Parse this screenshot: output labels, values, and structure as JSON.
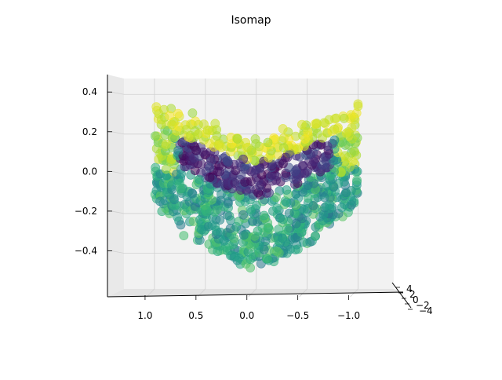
{
  "chart_data": {
    "type": "scatter",
    "projection": "3d",
    "title": "Isomap",
    "colormap": "viridis",
    "marker_alpha": 0.55,
    "axes": {
      "x": {
        "ticks": [
          1.0,
          0.5,
          0.0,
          -0.5,
          -1.0
        ],
        "tick_labels": [
          "1.0",
          "0.5",
          "0.0",
          "−0.5",
          "−1.0"
        ],
        "range": [
          1.3,
          -1.35
        ]
      },
      "z": {
        "ticks": [
          0.4,
          0.2,
          0.0,
          -0.2,
          -0.4
        ],
        "tick_labels": [
          "0.4",
          "0.2",
          "0.0",
          "−0.2",
          "−0.4"
        ],
        "range": [
          -0.58,
          0.48
        ]
      },
      "y": {
        "tick_labels": [
          "4",
          "2",
          "0",
          "−2",
          "−4"
        ]
      },
      "grid": true,
      "pane_color": "#f2f2f2"
    },
    "series": [
      {
        "name": "",
        "samples": 1000,
        "color_range": [
          0.0,
          1.0
        ],
        "x_range": [
          -1.0,
          1.0
        ],
        "y_range": [
          -0.55,
          0.42
        ],
        "shape": "U-shaped point cloud; yellow/lime points along the top rim and outer edges, purple points near the upper center, teal and green points filling the lower trough"
      }
    ]
  }
}
